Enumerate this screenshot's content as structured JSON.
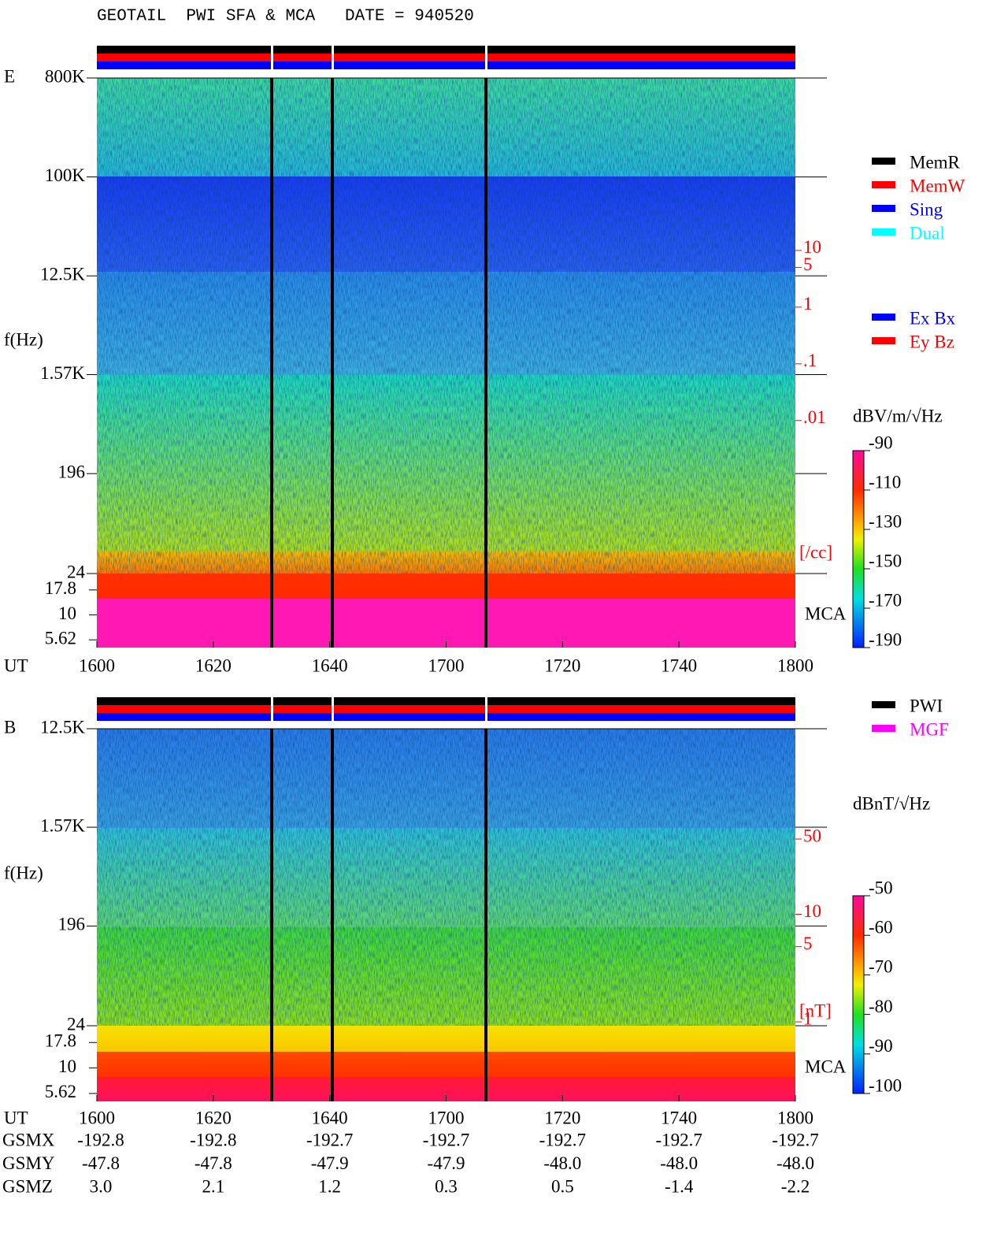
{
  "title": "GEOTAIL  PWI SFA & MCA   DATE = 940520",
  "chart_data": [
    {
      "type": "spectrogram",
      "panel_label": "E",
      "y_label": "f(Hz)",
      "x_label": "UT",
      "y_log": true,
      "ylim": [
        24,
        800000
      ],
      "yticks": [
        {
          "value": 800000,
          "label": "800K"
        },
        {
          "value": 100000,
          "label": "100K"
        },
        {
          "value": 12500,
          "label": "12.5K"
        },
        {
          "value": 1570,
          "label": "1.57K"
        },
        196,
        24
      ],
      "mca_label": "MCA",
      "mca_ylim": [
        4.7,
        26
      ],
      "mca_yticks": [
        17.8,
        10,
        5.62
      ],
      "xticks": [
        "1600",
        "1620",
        "1640",
        "1700",
        "1720",
        "1740",
        "1800"
      ],
      "colorbar": {
        "label": "dBV/m/√Hz",
        "lim": [
          -190,
          -90
        ],
        "ticks": [
          -90,
          -110,
          -130,
          -150,
          -170,
          -190
        ]
      },
      "y2_label": "[/cc]",
      "y2lim": [
        2e-05,
        11000
      ],
      "y2ticks": [
        10,
        5,
        1,
        {
          "value": 0.1,
          "label": ".1"
        },
        {
          "value": 0.01,
          "label": ".01"
        }
      ]
    },
    {
      "type": "spectrogram",
      "panel_label": "B",
      "y_label": "f(Hz)",
      "x_label": "UT",
      "y_log": true,
      "ylim": [
        24,
        12500
      ],
      "yticks": [
        {
          "value": 12500,
          "label": "12.5K"
        },
        {
          "value": 1570,
          "label": "1.57K"
        },
        196,
        24
      ],
      "mca_label": "MCA",
      "mca_ylim": [
        4.7,
        26
      ],
      "mca_yticks": [
        17.8,
        10,
        5.62
      ],
      "xticks": [
        "1600",
        "1620",
        "1640",
        "1700",
        "1720",
        "1740",
        "1800"
      ],
      "colorbar": {
        "label": "dBnT/√Hz",
        "lim": [
          -100,
          -50
        ],
        "ticks": [
          -50,
          -60,
          -70,
          -80,
          -90,
          -100
        ]
      },
      "y2_label": "[nT]",
      "y2lim": [
        0.92,
        530
      ],
      "y2ticks": [
        50,
        10,
        5,
        1
      ]
    }
  ],
  "status_legend": [
    {
      "name": "MemR",
      "color": "#000000"
    },
    {
      "name": "MemW",
      "color": "#ff0000"
    },
    {
      "name": "Sing",
      "color": "#0000ff"
    },
    {
      "name": "Dual",
      "color": "#00ffff"
    }
  ],
  "mode_legend": [
    {
      "name": "Ex Bx",
      "color": "#0000ff"
    },
    {
      "name": "Ey Bz",
      "color": "#ff0000"
    }
  ],
  "source_legend": [
    {
      "name": "PWI",
      "color": "#000000"
    },
    {
      "name": "MGF",
      "color": "#ff00ff"
    }
  ],
  "orbit": {
    "label": "UT",
    "rows": [
      {
        "name": "GSMX",
        "values": [
          "-192.8",
          "-192.8",
          "-192.7",
          "-192.7",
          "-192.7",
          "-192.7",
          "-192.7"
        ]
      },
      {
        "name": "GSMY",
        "values": [
          "-47.8",
          "-47.8",
          "-47.9",
          "-47.9",
          "-48.0",
          "-48.0",
          "-48.0"
        ]
      },
      {
        "name": "GSMZ",
        "values": [
          "3.0",
          "2.1",
          "1.2",
          "0.3",
          "0.5",
          "-1.4",
          "-2.2"
        ]
      }
    ]
  }
}
